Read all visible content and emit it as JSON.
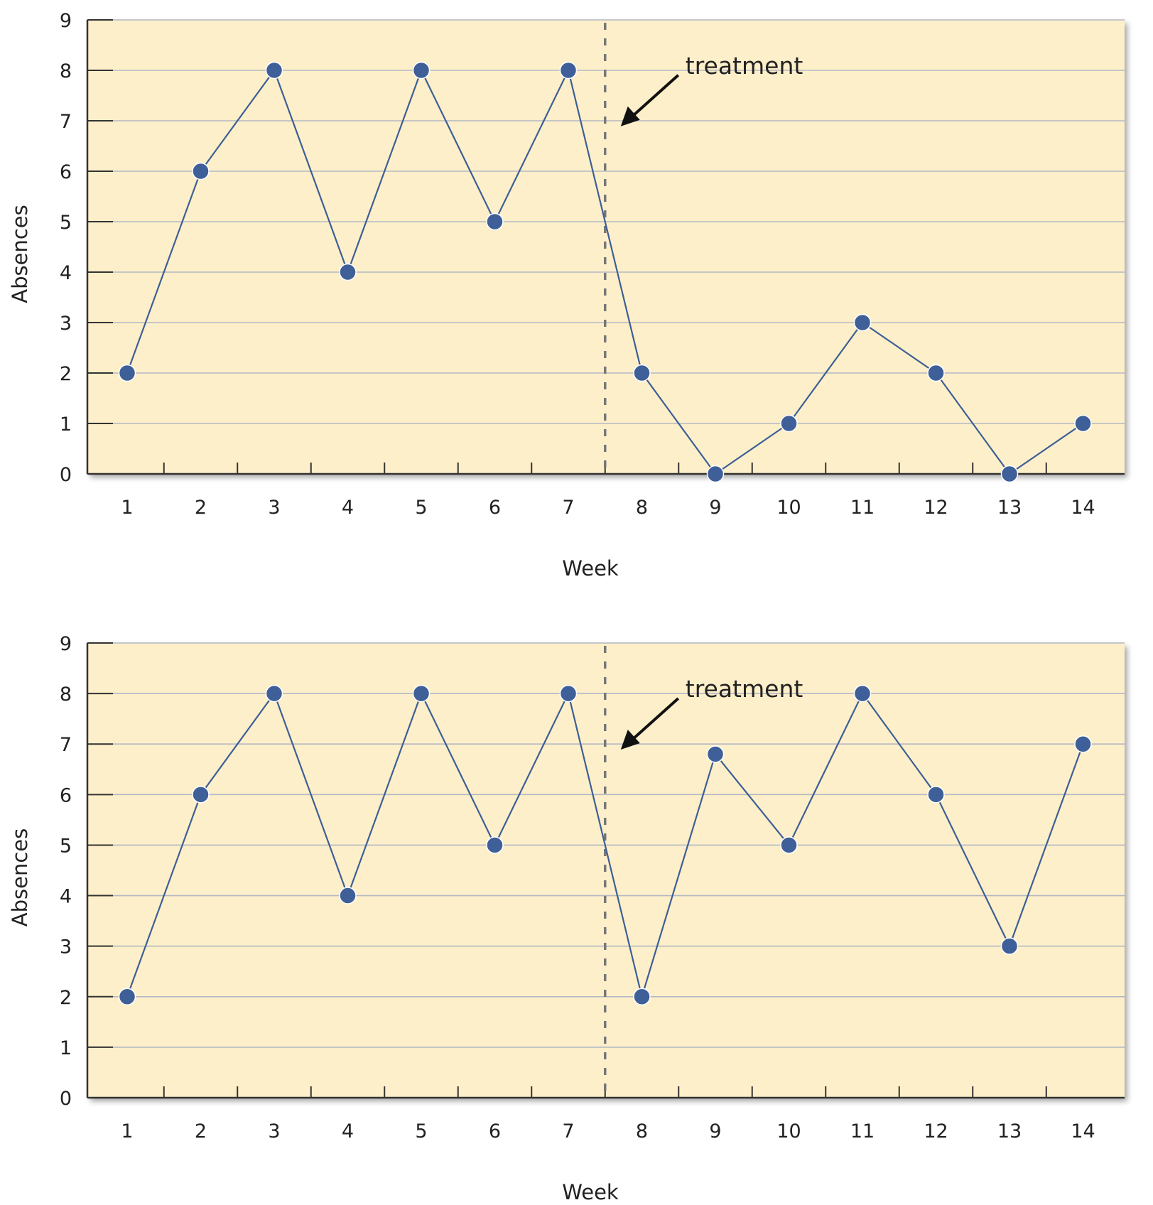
{
  "chart_data": [
    {
      "type": "line",
      "xlabel": "Week",
      "ylabel": "Absences",
      "x": [
        1,
        2,
        3,
        4,
        5,
        6,
        7,
        8,
        9,
        10,
        11,
        12,
        13,
        14
      ],
      "xtick_labels": [
        "1",
        "2",
        "3",
        "4",
        "5",
        "6",
        "7",
        "8",
        "9",
        "10",
        "11",
        "12",
        "13",
        "14"
      ],
      "ytick_labels": [
        "0",
        "1",
        "2",
        "3",
        "4",
        "5",
        "6",
        "7",
        "8",
        "9"
      ],
      "ylim": [
        0,
        9
      ],
      "series": [
        {
          "values": [
            2,
            6,
            8,
            4,
            8,
            5,
            8,
            2,
            0,
            1,
            3,
            2,
            0,
            1
          ]
        }
      ],
      "treatment_after_week": 7.5,
      "annotation": "treatment",
      "grid": true,
      "colors": {
        "background": "#fdefc9",
        "line": "#3d5f96",
        "marker": "#3e5f97",
        "grid": "#b4b8c4",
        "divider": "#777777"
      }
    },
    {
      "type": "line",
      "xlabel": "Week",
      "ylabel": "Absences",
      "x": [
        1,
        2,
        3,
        4,
        5,
        6,
        7,
        8,
        9,
        10,
        11,
        12,
        13,
        14
      ],
      "xtick_labels": [
        "1",
        "2",
        "3",
        "4",
        "5",
        "6",
        "7",
        "8",
        "9",
        "10",
        "11",
        "12",
        "13",
        "14"
      ],
      "ytick_labels": [
        "0",
        "1",
        "2",
        "3",
        "4",
        "5",
        "6",
        "7",
        "8",
        "9"
      ],
      "ylim": [
        0,
        9
      ],
      "series": [
        {
          "values": [
            2,
            6,
            8,
            4,
            8,
            5,
            8,
            2,
            6.8,
            5,
            8,
            6,
            3,
            7
          ]
        }
      ],
      "treatment_after_week": 7.5,
      "annotation": "treatment",
      "grid": true,
      "colors": {
        "background": "#fdefc9",
        "line": "#3d5f96",
        "marker": "#3e5f97",
        "grid": "#b4b8c4",
        "divider": "#777777"
      }
    }
  ]
}
